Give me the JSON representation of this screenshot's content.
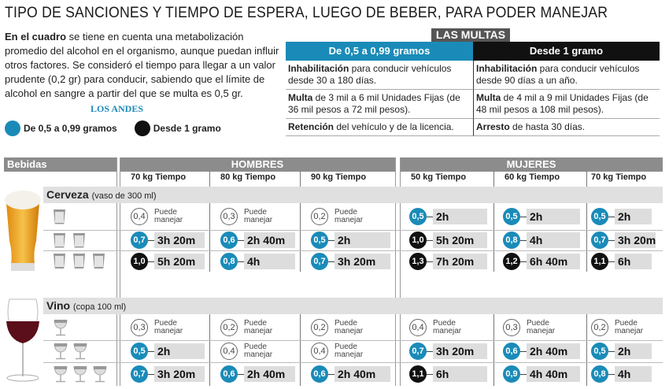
{
  "title": "TIPO DE SANCIONES Y TIEMPO DE ESPERA, LUEGO DE BEBER, PARA PODER MANEJAR",
  "intro": {
    "bold": "En el cuadro",
    "text": " se tiene en cuenta una metabolización promedio del alcohol en el organismo, aunque puedan influir otros factores. Se consideró el tiempo para llegar a un valor prudente (0,2 gr) para conducir, sabiendo que el límite de alcohol en sangre a partir del que se multa es 0,5 gr."
  },
  "brand": "LOS ANDES",
  "legend": [
    {
      "label": "De 0,5 a 0,99 gramos",
      "color": "#1a8bb8"
    },
    {
      "label": "Desde 1 gramo",
      "color": "#111111"
    }
  ],
  "multas": {
    "tag": "LAS MULTAS",
    "headers": [
      "De 0,5 a 0,99 gramos",
      "Desde 1 gramo"
    ],
    "rows": [
      [
        {
          "bold": "Inhabilitación",
          "text": "  para conducir vehículos desde 30 a 180 días."
        },
        {
          "bold": "Inhabilitación",
          "text": " para conducir vehículos desde 90 días a un año."
        }
      ],
      [
        {
          "bold": "Multa",
          "text": " de 3 mil a 6 mil Unidades Fijas (de 36 mil pesos a 72 mil pesos)."
        },
        {
          "bold": "Multa",
          "text": " de 4 mil a 9 mil  Unidades Fijas (de 48 mil pesos a 108 mil pesos)."
        }
      ],
      [
        {
          "bold": "Retención",
          "text": " del vehículo y de la licencia."
        },
        {
          "bold": "Arresto",
          "text": " de hasta 30 días."
        }
      ]
    ]
  },
  "table": {
    "bebidas": "Bebidas",
    "hombres": "HOMBRES",
    "mujeres": "MUJERES",
    "columns": [
      {
        "kg": "70 kg",
        "t": "Tiempo"
      },
      {
        "kg": "80 kg",
        "t": "Tiempo"
      },
      {
        "kg": "90 kg",
        "t": "Tiempo"
      },
      {
        "kg": "50 kg",
        "t": "Tiempo"
      },
      {
        "kg": "60 kg",
        "t": "Tiempo"
      },
      {
        "kg": "70 kg",
        "t": "Tiempo"
      }
    ],
    "puede": [
      "Puede",
      "manejar"
    ],
    "drinks": [
      {
        "name": "Cerveza",
        "unit": "(vaso de 300 ml)",
        "rows": [
          [
            [
              "0,4",
              "none",
              ""
            ],
            [
              "0,3",
              "none",
              ""
            ],
            [
              "0,2",
              "none",
              ""
            ],
            [
              "0,5",
              "blue",
              "2h"
            ],
            [
              "0,5",
              "blue",
              "2h"
            ],
            [
              "0,5",
              "blue",
              "2h"
            ]
          ],
          [
            [
              "0,7",
              "blue",
              "3h 20m"
            ],
            [
              "0,6",
              "blue",
              "2h 40m"
            ],
            [
              "0,5",
              "blue",
              "2h"
            ],
            [
              "1,0",
              "black",
              "5h 20m"
            ],
            [
              "0,8",
              "blue",
              "4h"
            ],
            [
              "0,7",
              "blue",
              "3h 20m"
            ]
          ],
          [
            [
              "1,0",
              "black",
              "5h 20m"
            ],
            [
              "0,8",
              "blue",
              "4h"
            ],
            [
              "0,7",
              "blue",
              "3h 20m"
            ],
            [
              "1,3",
              "black",
              "7h 20m"
            ],
            [
              "1,2",
              "black",
              "6h 40m"
            ],
            [
              "1,1",
              "black",
              "6h"
            ]
          ]
        ]
      },
      {
        "name": "Vino",
        "unit": "(copa 100 ml)",
        "rows": [
          [
            [
              "0,3",
              "none",
              ""
            ],
            [
              "0,2",
              "none",
              ""
            ],
            [
              "0,2",
              "none",
              ""
            ],
            [
              "0,4",
              "none",
              ""
            ],
            [
              "0,3",
              "none",
              ""
            ],
            [
              "0,2",
              "none",
              ""
            ]
          ],
          [
            [
              "0,5",
              "blue",
              "2h"
            ],
            [
              "0,4",
              "none",
              ""
            ],
            [
              "0,4",
              "none",
              ""
            ],
            [
              "0,7",
              "blue",
              "3h 20m"
            ],
            [
              "0,6",
              "blue",
              "2h 40m"
            ],
            [
              "0,5",
              "blue",
              "2h"
            ]
          ],
          [
            [
              "0,7",
              "blue",
              "3h 20m"
            ],
            [
              "0,6",
              "blue",
              "2h 40m"
            ],
            [
              "0,6",
              "blue",
              "2h 40m"
            ],
            [
              "1,1",
              "black",
              "6h"
            ],
            [
              "0,9",
              "blue",
              "4h 40m"
            ],
            [
              "0,8",
              "blue",
              "4h"
            ]
          ]
        ]
      }
    ]
  }
}
